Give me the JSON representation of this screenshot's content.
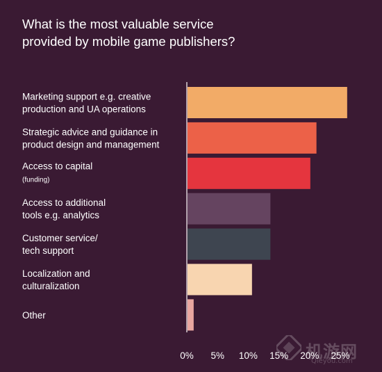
{
  "title_lines": [
    "What is the most valuable service",
    "provided by mobile game publishers?"
  ],
  "watermark": {
    "text": "机游网",
    "sub": "Qieyou.com"
  },
  "chart_data": {
    "type": "bar",
    "orientation": "horizontal",
    "title": "What is the most valuable service provided by mobile game publishers?",
    "categories": [
      {
        "lines": [
          "Marketing support e.g. creative",
          "production and UA operations"
        ],
        "note": ""
      },
      {
        "lines": [
          "Strategic advice and guidance in",
          "product design and management"
        ],
        "note": ""
      },
      {
        "lines": [
          "Access to capital"
        ],
        "note": "(funding)"
      },
      {
        "lines": [
          "Access to additional",
          "tools e.g. analytics"
        ],
        "note": ""
      },
      {
        "lines": [
          "Customer service/",
          "tech support"
        ],
        "note": ""
      },
      {
        "lines": [
          "Localization and",
          "culturalization"
        ],
        "note": ""
      },
      {
        "lines": [
          "Other"
        ],
        "note": ""
      }
    ],
    "values": [
      26.0,
      21.0,
      20.0,
      13.5,
      13.5,
      10.5,
      1.0
    ],
    "colors": [
      "#f2ab67",
      "#ec6148",
      "#e5353e",
      "#654460",
      "#3e4550",
      "#f8d5b0",
      "#e9a6a0"
    ],
    "xlim": [
      0,
      25
    ],
    "ticks": [
      "0%",
      "5%",
      "10%",
      "15%",
      "20%",
      "25%"
    ],
    "grid": false,
    "legend": "none"
  }
}
